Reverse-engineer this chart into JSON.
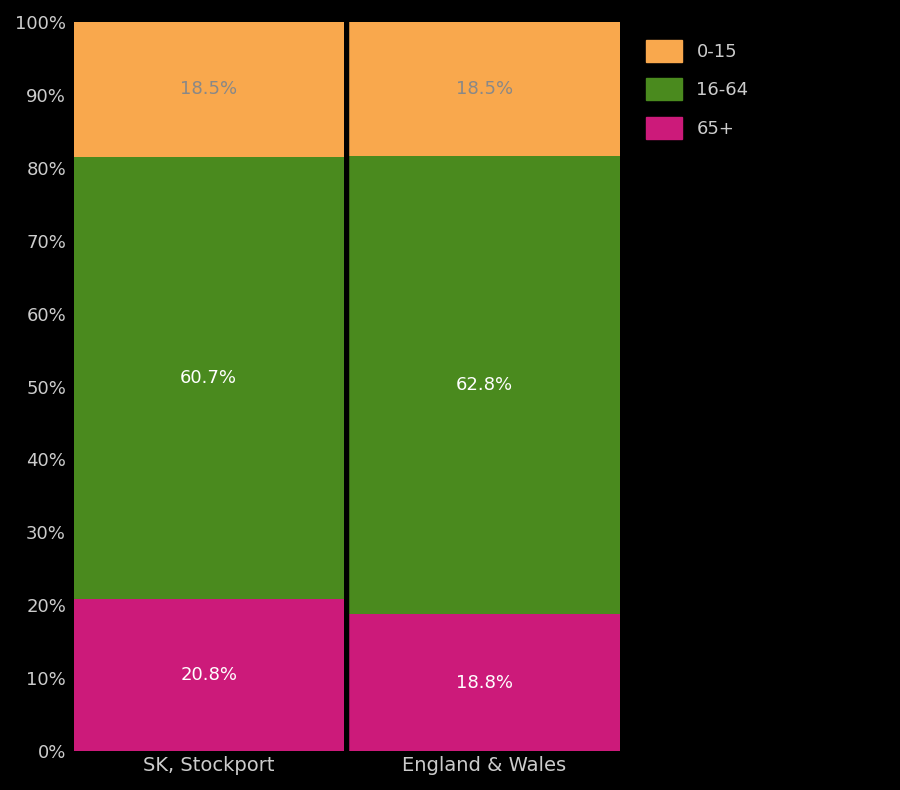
{
  "categories": [
    "SK, Stockport",
    "England & Wales"
  ],
  "segments": {
    "65+": [
      20.8,
      18.8
    ],
    "16-64": [
      60.7,
      62.8
    ],
    "0-15": [
      18.5,
      18.5
    ]
  },
  "colors": {
    "65+": "#cc1a7a",
    "16-64": "#4a8a1e",
    "0-15": "#f9a84d"
  },
  "label_colors": {
    "65+": "white",
    "16-64": "white",
    "0-15": "#888888"
  },
  "background_color": "#000000",
  "axes_bg_color": "#000000",
  "text_color": "#cccccc",
  "tick_label_color": "#cccccc",
  "bar_width": 0.98,
  "ylim": [
    0,
    100
  ],
  "ylabel_ticks": [
    0,
    10,
    20,
    30,
    40,
    50,
    60,
    70,
    80,
    90,
    100
  ],
  "ytick_labels": [
    "0%",
    "10%",
    "20%",
    "30%",
    "40%",
    "50%",
    "60%",
    "70%",
    "80%",
    "90%",
    "100%"
  ],
  "legend_order": [
    "0-15",
    "16-64",
    "65+"
  ],
  "legend_fontsize": 13,
  "tick_fontsize": 13,
  "label_fontsize": 14,
  "annotation_fontsize": 13,
  "divider_color": "#000000",
  "divider_linewidth": 2.5
}
